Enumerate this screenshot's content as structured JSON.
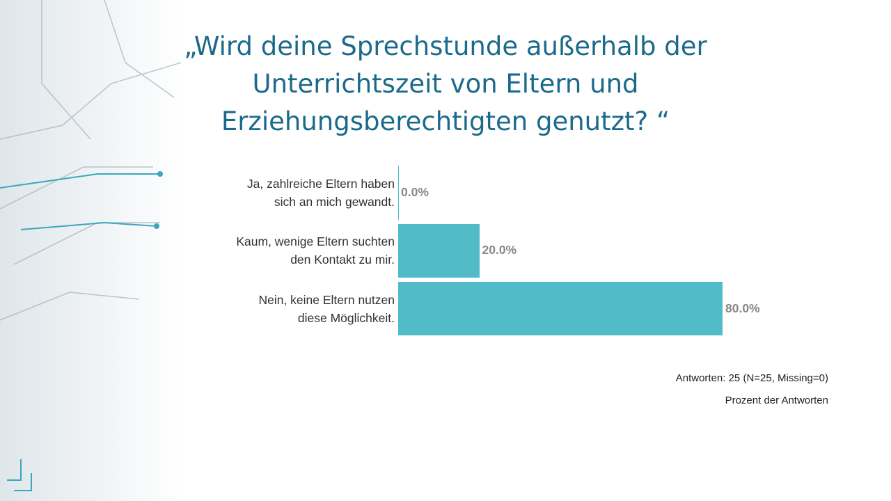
{
  "chart_data": {
    "type": "bar",
    "orientation": "horizontal",
    "title": "„Wird deine Sprechstunde außerhalb der\nUnterrichtszeit von Eltern und\nErziehungsberechtigten genutzt? “",
    "categories": [
      "Ja, zahlreiche Eltern haben\nsich an mich gewandt.",
      "Kaum, wenige Eltern suchten\nden Kontakt zu mir.",
      "Nein, keine Eltern nutzen\ndiese Möglichkeit."
    ],
    "values": [
      0,
      20,
      80
    ],
    "value_labels": [
      "0.0%",
      "20.0%",
      "80.0%"
    ],
    "color": "#52bbc8",
    "xlim": [
      0,
      100
    ],
    "notes": [
      "Antworten: 25 (N=25, Missing=0)",
      "Prozent der Antworten"
    ]
  }
}
